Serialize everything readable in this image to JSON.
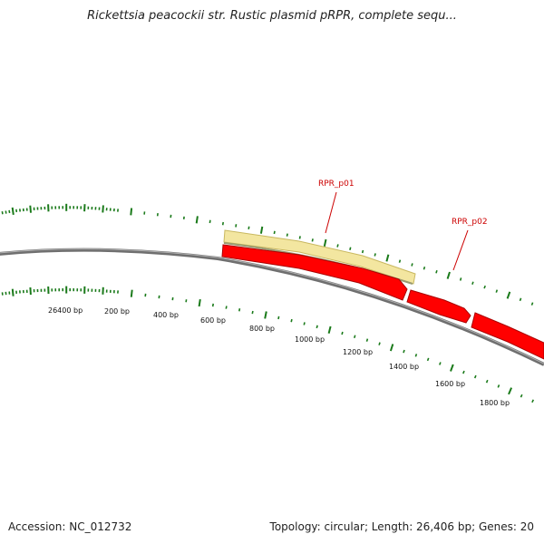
{
  "title": "Rickettsia peacockii str. Rustic plasmid pRPR, complete sequ...",
  "footer": {
    "accession": "Accession: NC_012732",
    "summary": "Topology: circular; Length: 26,406 bp; Genes: 20"
  },
  "map": {
    "colors": {
      "backbone": "#808080",
      "gene_forward": "#ff0000",
      "gene_other": "#f3e6a0",
      "ticks": "#1a7a1a",
      "label": "#cc0000"
    },
    "tick_labels": [
      "26400 bp",
      "200 bp",
      "400 bp",
      "600 bp",
      "800 bp",
      "1000 bp",
      "1200 bp",
      "1400 bp",
      "1600 bp",
      "1800 bp"
    ],
    "gene_labels": [
      "RPR_p01",
      "RPR_p02"
    ]
  }
}
